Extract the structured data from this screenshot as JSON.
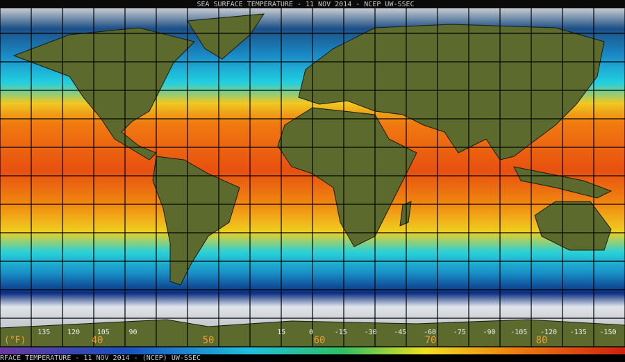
{
  "header": {
    "title": "SEA SURFACE TEMPERATURE - 11 NOV 2014 - NCEP UW-SSEC"
  },
  "longitude_labels": [
    135,
    120,
    105,
    90,
    15,
    0,
    -15,
    -30,
    -45,
    -60,
    -75,
    -90,
    -105,
    -120,
    -135,
    -150
  ],
  "unit": "(°F)",
  "scale_labels": [
    "40",
    "50",
    "60",
    "70",
    "80"
  ],
  "footer": "RFACE TEMPERATURE - 11 NOV 2014 - (NCEP)  UW-SSEC"
}
